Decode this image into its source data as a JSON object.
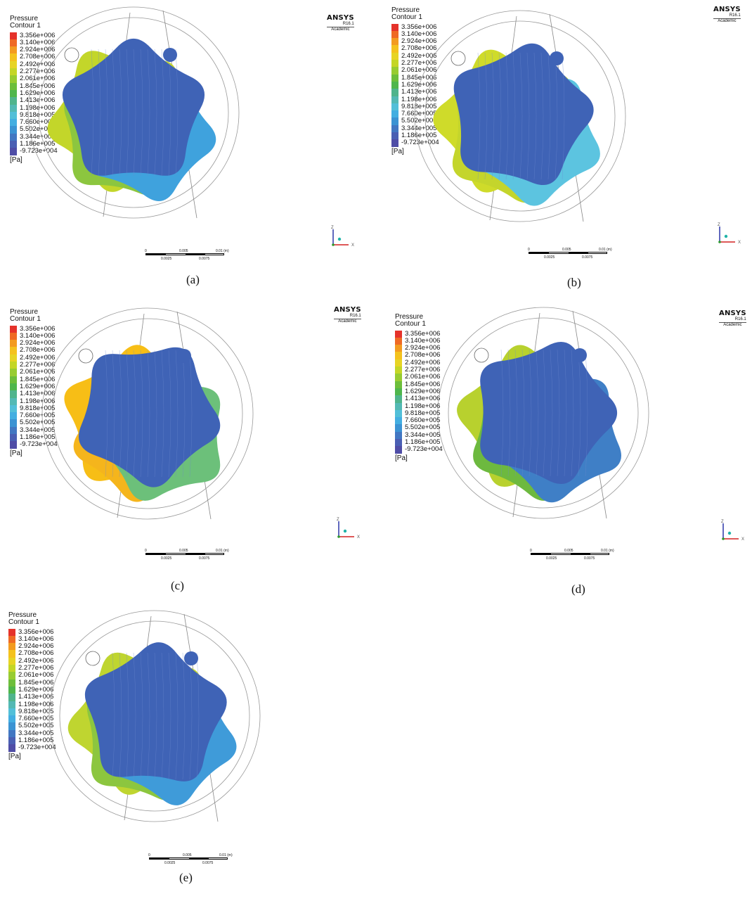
{
  "legend": {
    "title": "Pressure",
    "subtitle": "Contour 1",
    "values": [
      "3.356e+006",
      "3.140e+006",
      "2.924e+006",
      "2.708e+006",
      "2.492e+006",
      "2.277e+006",
      "2.061e+006",
      "1.845e+006",
      "1.629e+006",
      "1.413e+006",
      "1.198e+006",
      "9.818e+005",
      "7.660e+005",
      "5.502e+005",
      "3.344e+005",
      "1.186e+005",
      "-9.723e+004"
    ],
    "colors": [
      "#e5322a",
      "#ef6a24",
      "#f39b1f",
      "#f4c21d",
      "#e7d424",
      "#c4d626",
      "#98cc31",
      "#6dbe3b",
      "#4fb64c",
      "#4fb48c",
      "#53b9b4",
      "#52bfd8",
      "#43aee1",
      "#3b93d3",
      "#4277c2",
      "#4a5fb3",
      "#4f4da6"
    ],
    "unit": "[Pa]"
  },
  "brand": {
    "name": "ANSYS",
    "version": "R16.1",
    "license": "Academic"
  },
  "scale": {
    "top": [
      "0",
      "0.005",
      "0.01 (m)"
    ],
    "bottom": [
      "0.0025",
      "0.0075"
    ]
  },
  "axes": {
    "z": "Z",
    "x": "X"
  },
  "panels": [
    {
      "caption": "(a)",
      "rotation": 0,
      "fills": [
        "#c3d62a",
        "#8cc63f",
        "#3fa2dd"
      ]
    },
    {
      "caption": "(b)",
      "rotation": 12,
      "fills": [
        "#cfdb2a",
        "#c4d52c",
        "#5cc4e0"
      ]
    },
    {
      "caption": "(c)",
      "rotation": 30,
      "fills": [
        "#f7be16",
        "#f5b51c",
        "#6cc07a"
      ]
    },
    {
      "caption": "(d)",
      "rotation": 18,
      "fills": [
        "#b8d12e",
        "#6db93f",
        "#3f7fc6"
      ]
    },
    {
      "caption": "(e)",
      "rotation": 4,
      "fills": [
        "#bfd530",
        "#8cc63f",
        "#3f9bd9"
      ]
    }
  ]
}
